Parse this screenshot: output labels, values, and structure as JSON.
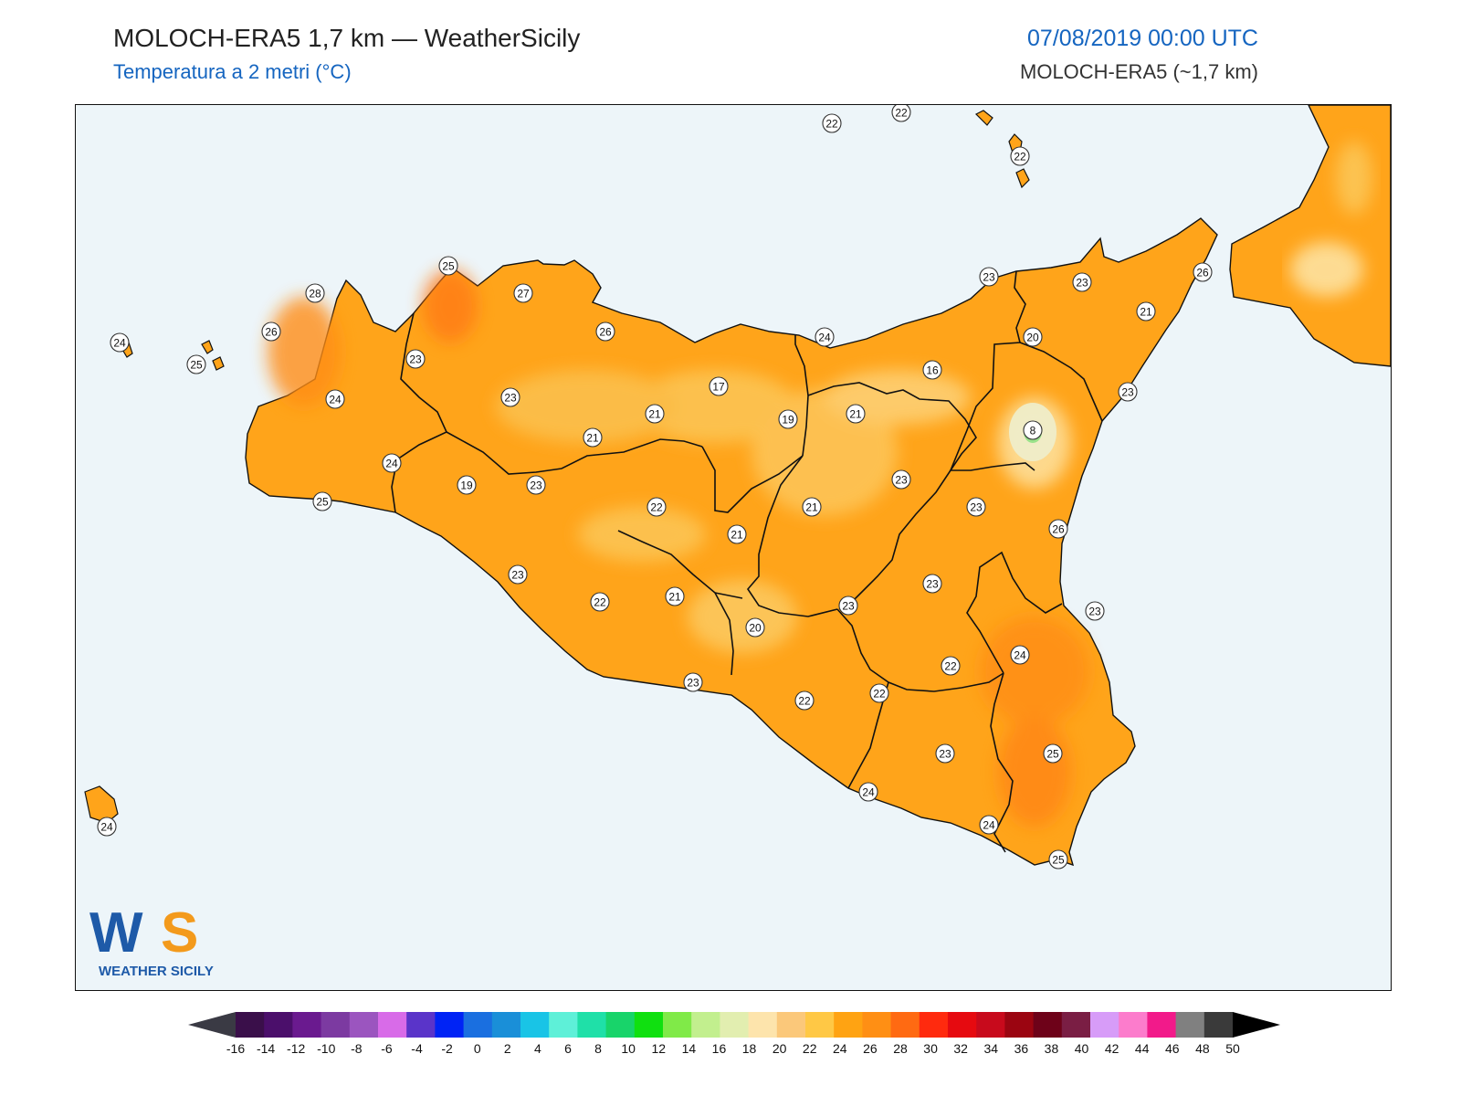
{
  "header": {
    "title": "MOLOCH-ERA5 1,7 km — WeatherSicily",
    "subtitle": "Temperatura a 2 metri (°C)",
    "datetime": "07/08/2019 00:00 UTC",
    "model": "MOLOCH-ERA5 (~1,7 km)"
  },
  "logo": {
    "text": "WEATHER SICILY",
    "mark": "WS"
  },
  "colorbar": {
    "labels": [
      "-16",
      "-14",
      "-12",
      "-10",
      "-8",
      "-6",
      "-4",
      "-2",
      "0",
      "2",
      "4",
      "6",
      "8",
      "10",
      "12",
      "14",
      "16",
      "18",
      "20",
      "22",
      "24",
      "26",
      "28",
      "30",
      "32",
      "34",
      "36",
      "38",
      "40",
      "42",
      "44",
      "46",
      "48",
      "50"
    ],
    "colors": [
      "#3a0f4a",
      "#4b0f6b",
      "#6a1a8f",
      "#7c3aa1",
      "#9b55bf",
      "#d86be8",
      "#5a34c9",
      "#0023f5",
      "#1a6fe0",
      "#1a8fd8",
      "#19c4e6",
      "#5ef0d8",
      "#1fe0a8",
      "#18d46a",
      "#10e010",
      "#80ea48",
      "#c2ef8e",
      "#e2eeb0",
      "#fde4ac",
      "#fbc87a",
      "#ffc845",
      "#ffa312",
      "#ff8f14",
      "#ff6a12",
      "#ff2a0e",
      "#e60a10",
      "#c80a1c",
      "#9b0511",
      "#6e0219",
      "#7a1e44",
      "#d79cf8",
      "#fc7ccc",
      "#f21a8a",
      "#808080",
      "#3a3a3a"
    ]
  },
  "stations": [
    {
      "label": "22"
    },
    {
      "label": "22"
    },
    {
      "label": "22"
    },
    {
      "label": "26"
    },
    {
      "label": "23"
    },
    {
      "label": "23"
    },
    {
      "label": "21"
    },
    {
      "label": "25"
    },
    {
      "label": "27"
    },
    {
      "label": "28"
    },
    {
      "label": "26"
    },
    {
      "label": "24"
    },
    {
      "label": "25"
    },
    {
      "label": "23"
    },
    {
      "label": "26"
    },
    {
      "label": "24"
    },
    {
      "label": "20"
    },
    {
      "label": "16"
    },
    {
      "label": "23"
    },
    {
      "label": "24"
    },
    {
      "label": "23"
    },
    {
      "label": "17"
    },
    {
      "label": "21"
    },
    {
      "label": "19"
    },
    {
      "label": "21"
    },
    {
      "label": "21"
    },
    {
      "label": "8"
    },
    {
      "label": "24"
    },
    {
      "label": "19"
    },
    {
      "label": "23"
    },
    {
      "label": "22"
    },
    {
      "label": "21"
    },
    {
      "label": "23"
    },
    {
      "label": "23"
    },
    {
      "label": "21"
    },
    {
      "label": "26"
    },
    {
      "label": "25"
    },
    {
      "label": "23"
    },
    {
      "label": "22"
    },
    {
      "label": "21"
    },
    {
      "label": "23"
    },
    {
      "label": "23"
    },
    {
      "label": "20"
    },
    {
      "label": "24"
    },
    {
      "label": "22"
    },
    {
      "label": "23"
    },
    {
      "label": "22"
    },
    {
      "label": "22"
    },
    {
      "label": "23"
    },
    {
      "label": "25"
    },
    {
      "label": "23"
    },
    {
      "label": "24"
    },
    {
      "label": "24"
    },
    {
      "label": "25"
    },
    {
      "label": "24"
    }
  ]
}
